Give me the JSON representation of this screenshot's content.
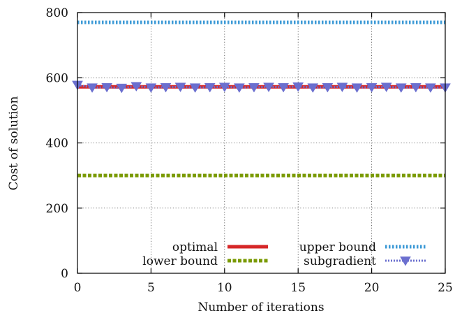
{
  "chart_data": {
    "type": "line",
    "xlabel": "Number of iterations",
    "ylabel": "Cost of solution",
    "xlim": [
      0,
      25
    ],
    "ylim": [
      0,
      800
    ],
    "xticks": [
      "0",
      "5",
      "10",
      "15",
      "20",
      "25"
    ],
    "yticks": [
      "0",
      "200",
      "400",
      "600",
      "800"
    ],
    "grid": true,
    "legend_position": "bottom-right",
    "x": [
      0,
      1,
      2,
      3,
      4,
      5,
      6,
      7,
      8,
      9,
      10,
      11,
      12,
      13,
      14,
      15,
      16,
      17,
      18,
      19,
      20,
      21,
      22,
      23,
      24,
      25
    ],
    "series": [
      {
        "name": "optimal",
        "color": "#d62728",
        "style": "solid",
        "values": [
          572,
          572,
          572,
          572,
          572,
          572,
          572,
          572,
          572,
          572,
          572,
          572,
          572,
          572,
          572,
          572,
          572,
          572,
          572,
          572,
          572,
          572,
          572,
          572,
          572,
          572
        ]
      },
      {
        "name": "upper bound",
        "color": "#3d9ad6",
        "style": "dotted",
        "values": [
          770,
          770,
          770,
          770,
          770,
          770,
          770,
          770,
          770,
          770,
          770,
          770,
          770,
          770,
          770,
          770,
          770,
          770,
          770,
          770,
          770,
          770,
          770,
          770,
          770,
          770
        ]
      },
      {
        "name": "lower bound",
        "color": "#7a9a00",
        "style": "dashed",
        "values": [
          300,
          300,
          300,
          300,
          300,
          300,
          300,
          300,
          300,
          300,
          300,
          300,
          300,
          300,
          300,
          300,
          300,
          300,
          300,
          300,
          300,
          300,
          300,
          300,
          300,
          300
        ]
      },
      {
        "name": "subgradient",
        "color": "#6b6fcf",
        "style": "dotted-marker",
        "marker": "triangle-down",
        "values": [
          578,
          570,
          571,
          569,
          574,
          570,
          571,
          572,
          570,
          571,
          572,
          570,
          571,
          572,
          571,
          573,
          570,
          571,
          572,
          570,
          571,
          572,
          570,
          571,
          570,
          570
        ]
      }
    ]
  }
}
